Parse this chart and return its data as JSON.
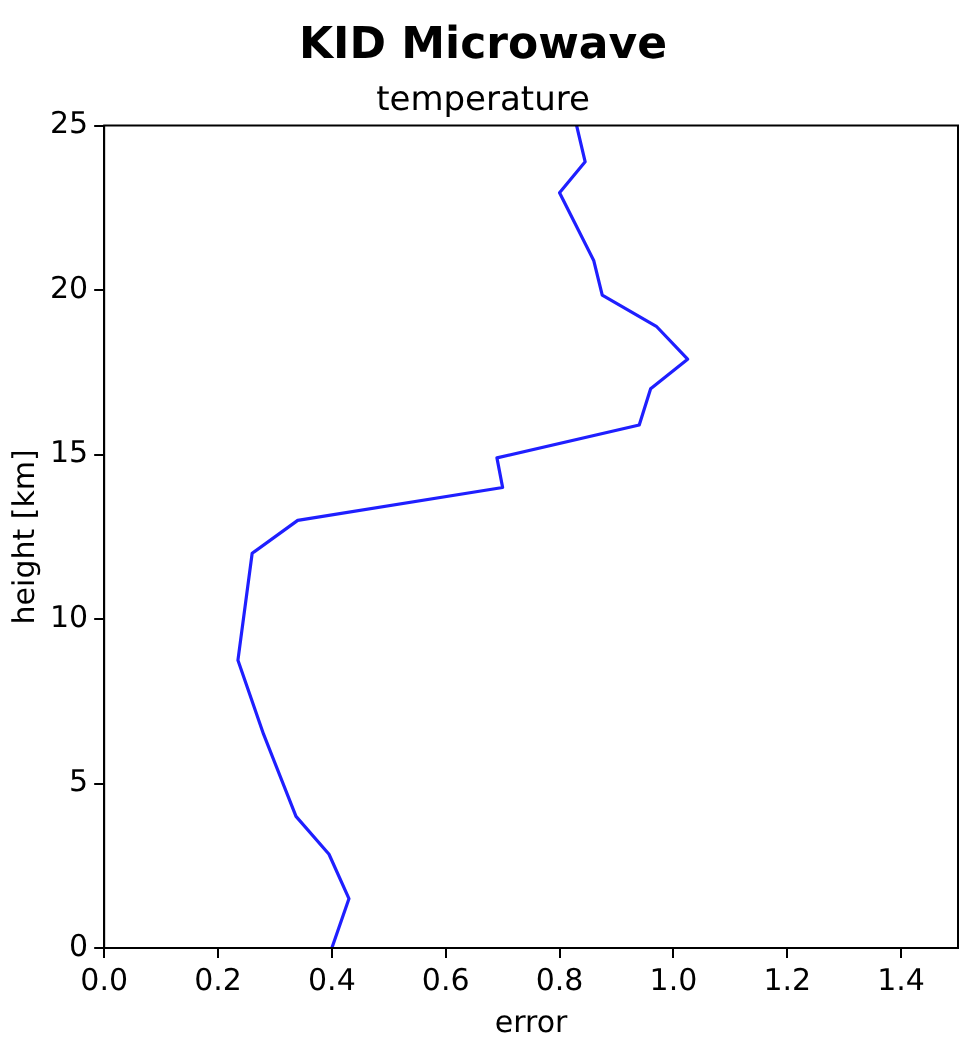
{
  "chart_data": {
    "type": "line",
    "title": "KID Microwave",
    "subtitle": "temperature",
    "xlabel": "error",
    "ylabel": "height [km]",
    "x": [
      0.4,
      0.43,
      0.395,
      0.337,
      0.28,
      0.235,
      0.26,
      0.34,
      0.7,
      0.69,
      0.94,
      0.96,
      1.025,
      0.97,
      0.875,
      0.86,
      0.8,
      0.845,
      0.83
    ],
    "series": [
      {
        "color": "#1f1fff",
        "values": [
          0,
          1.5,
          2.85,
          4.0,
          6.5,
          8.75,
          12.0,
          13.0,
          14.0,
          14.9,
          15.9,
          17.0,
          17.9,
          18.9,
          19.85,
          20.9,
          22.96,
          23.9,
          25
        ]
      }
    ],
    "xlim": [
      0,
      1.5
    ],
    "xticks": [
      {
        "value": 0,
        "label": "0.0"
      },
      {
        "value": 0.2,
        "label": "0.2"
      },
      {
        "value": 0.4,
        "label": "0.4"
      },
      {
        "value": 0.6,
        "label": "0.6"
      },
      {
        "value": 0.8,
        "label": "0.8"
      },
      {
        "value": 1,
        "label": "1.0"
      },
      {
        "value": 1.2,
        "label": "1.2"
      },
      {
        "value": 1.4,
        "label": "1.4"
      }
    ],
    "ylim": [
      0,
      25
    ],
    "yticks": [
      0,
      5,
      10,
      15,
      20,
      25
    ],
    "grid": false,
    "legend": false,
    "marker": "none",
    "line_style": "solid"
  }
}
